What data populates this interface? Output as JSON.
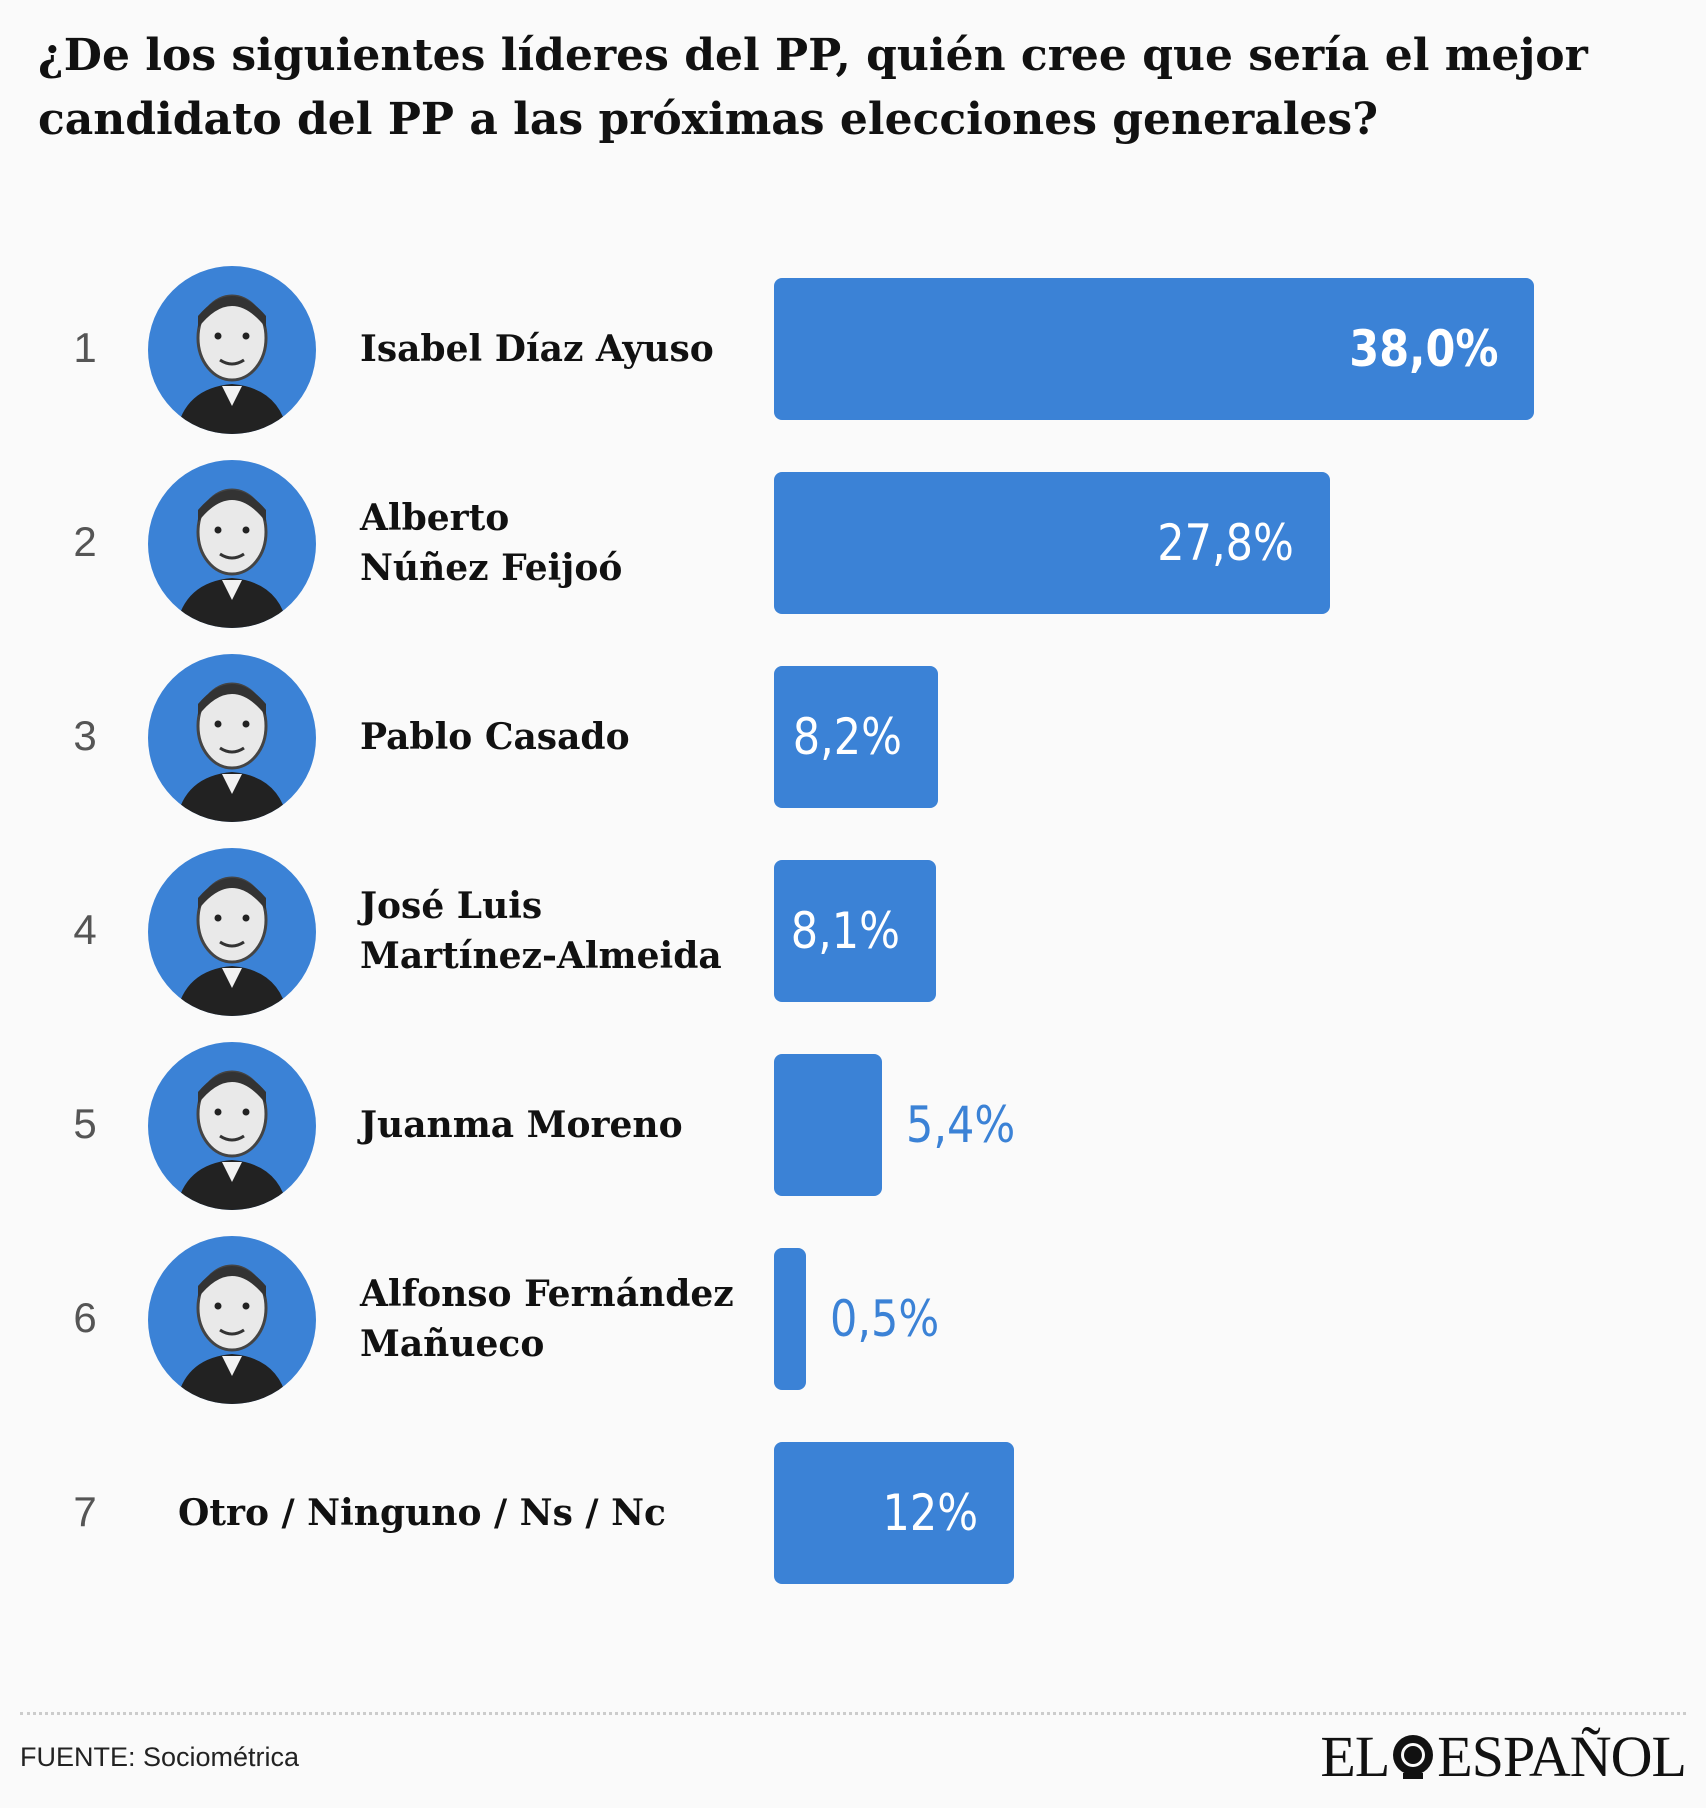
{
  "title": "¿De los siguientes líderes del PP, quién cree que sería el mejor candidato del PP a las próximas elecciones generales?",
  "chart_data": {
    "type": "bar",
    "orientation": "horizontal",
    "title": "¿De los siguientes líderes del PP, quién cree que sería el mejor candidato del PP a las próximas elecciones generales?",
    "xlabel": "",
    "ylabel": "",
    "xlim": [
      0,
      40
    ],
    "unit": "%",
    "bar_color": "#3b82d6",
    "rows": [
      {
        "rank": "1",
        "name": "Isabel Díaz Ayuso",
        "name_lines": [
          "Isabel Díaz Ayuso"
        ],
        "value": 38.0,
        "label": "38,0%",
        "has_photo": true
      },
      {
        "rank": "2",
        "name": "Alberto Núñez Feijoó",
        "name_lines": [
          "Alberto",
          "Núñez Feijoó"
        ],
        "value": 27.8,
        "label": "27,8%",
        "has_photo": true
      },
      {
        "rank": "3",
        "name": "Pablo Casado",
        "name_lines": [
          "Pablo Casado"
        ],
        "value": 8.2,
        "label": "8,2%",
        "has_photo": true
      },
      {
        "rank": "4",
        "name": "José Luis Martínez-Almeida",
        "name_lines": [
          "José Luis",
          "Martínez-Almeida"
        ],
        "value": 8.1,
        "label": "8,1%",
        "has_photo": true
      },
      {
        "rank": "5",
        "name": "Juanma Moreno",
        "name_lines": [
          "Juanma Moreno"
        ],
        "value": 5.4,
        "label": "5,4%",
        "has_photo": true
      },
      {
        "rank": "6",
        "name": "Alfonso Fernández Mañueco",
        "name_lines": [
          "Alfonso Fernández",
          "Mañueco"
        ],
        "value": 0.5,
        "label": "0,5%",
        "has_photo": true
      },
      {
        "rank": "7",
        "name": "Otro / Ninguno / Ns / Nc",
        "name_lines": [
          "Otro / Ninguno / Ns / Nc"
        ],
        "value": 12,
        "label": "12%",
        "has_photo": false
      }
    ]
  },
  "footer": {
    "source": "FUENTE: Sociométrica",
    "logo_left": "EL",
    "logo_right": "ESPAÑOL",
    "logo_icon": "lion-icon"
  }
}
